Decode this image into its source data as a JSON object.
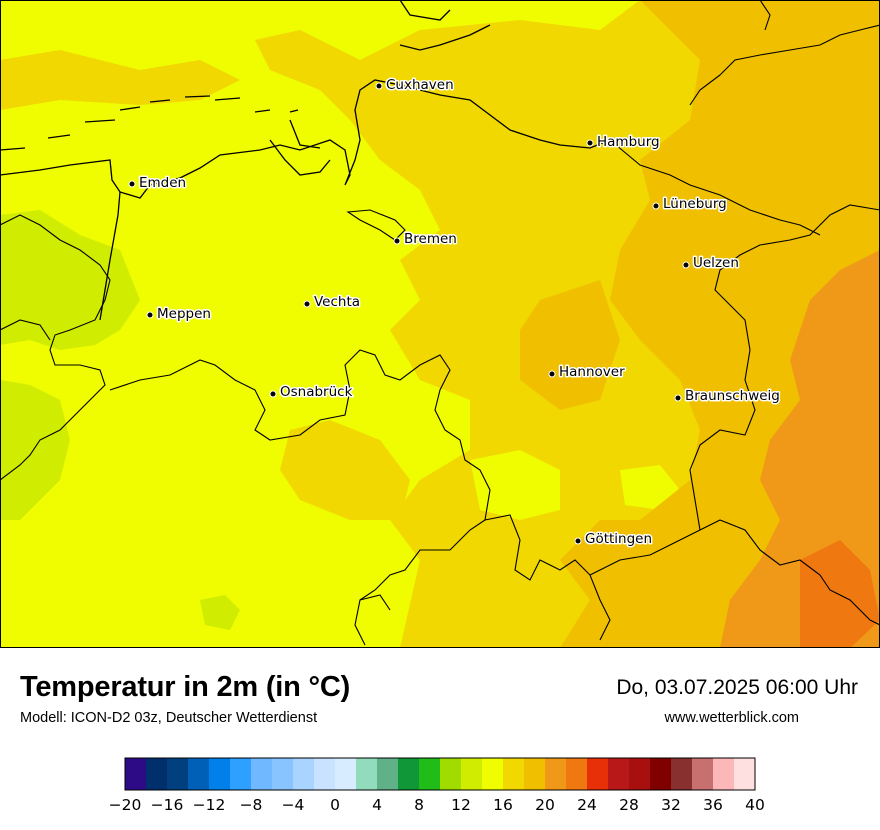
{
  "title": "Temperatur in 2m (in °C)",
  "subtitle": "Modell: ICON-D2 03z, Deutscher Wetterdienst",
  "datetime": "Do, 03.07.2025 06:00 Uhr",
  "website": "www.wetterblick.com",
  "cities": [
    {
      "name": "Cuxhaven"
    },
    {
      "name": "Hamburg"
    },
    {
      "name": "Emden"
    },
    {
      "name": "Lüneburg"
    },
    {
      "name": "Bremen"
    },
    {
      "name": "Uelzen"
    },
    {
      "name": "Vechta"
    },
    {
      "name": "Meppen"
    },
    {
      "name": "Hannover"
    },
    {
      "name": "Osnabrück"
    },
    {
      "name": "Braunschweig"
    },
    {
      "name": "Göttingen"
    }
  ],
  "legend": {
    "unit": "°C",
    "min": -20,
    "max": 40,
    "step": 2,
    "tick_labels": [
      "−20",
      "−16",
      "−12",
      "−8",
      "−4",
      "0",
      "4",
      "8",
      "12",
      "16",
      "20",
      "24",
      "28",
      "32",
      "36",
      "40"
    ],
    "colors": [
      "#2e0b86",
      "#00306c",
      "#00407f",
      "#0060b8",
      "#0080e8",
      "#2ea0ff",
      "#70b8ff",
      "#88c4ff",
      "#a8d4ff",
      "#c8e2ff",
      "#d8ecff",
      "#90dcbc",
      "#60b088",
      "#109838",
      "#20bc18",
      "#a0dc00",
      "#d0ec00",
      "#f0fc00",
      "#f0d800",
      "#f0c000",
      "#f09818",
      "#f07810",
      "#e83008",
      "#b81818",
      "#a81010",
      "#800000",
      "#883030",
      "#c87070",
      "#fcb8b8",
      "#ffe0e0"
    ]
  }
}
